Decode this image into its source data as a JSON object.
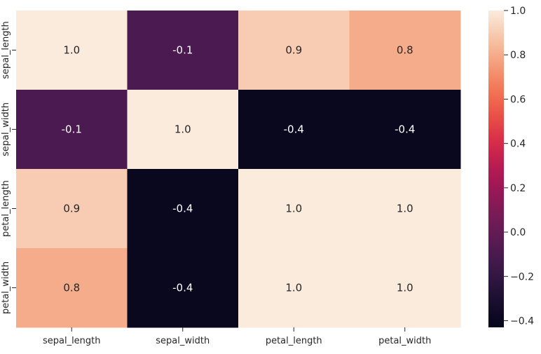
{
  "chart_data": {
    "type": "heatmap",
    "title": "",
    "xlabel": "",
    "ylabel": "",
    "x_categories": [
      "sepal_length",
      "sepal_width",
      "petal_length",
      "petal_width"
    ],
    "y_categories": [
      "sepal_length",
      "sepal_width",
      "petal_length",
      "petal_width"
    ],
    "values": [
      [
        1.0,
        -0.1,
        0.9,
        0.8
      ],
      [
        -0.1,
        1.0,
        -0.4,
        -0.4
      ],
      [
        0.9,
        -0.4,
        1.0,
        1.0
      ],
      [
        0.8,
        -0.4,
        1.0,
        1.0
      ]
    ],
    "colormap": "rocket",
    "vmin": -0.43,
    "vmax": 1.0,
    "colorbar_ticks": [
      -0.4,
      -0.2,
      0.0,
      0.2,
      0.4,
      0.6,
      0.8,
      1.0
    ],
    "colorbar_tick_labels": [
      "−0.4",
      "−0.2",
      "0.0",
      "0.2",
      "0.4",
      "0.6",
      "0.8",
      "1.0"
    ],
    "annotation_format": "0.1f",
    "grid": false,
    "legend_position": "right"
  }
}
